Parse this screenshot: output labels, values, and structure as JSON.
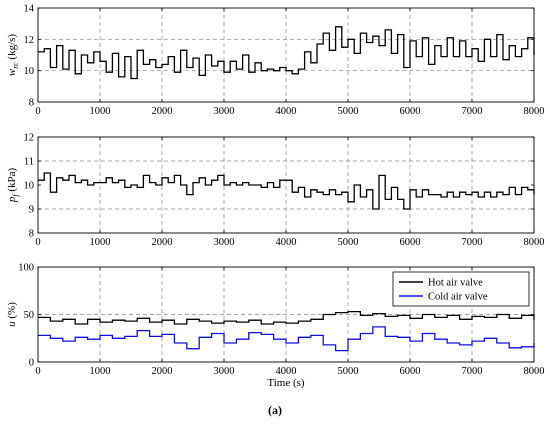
{
  "caption": "(a)",
  "chart_data": [
    {
      "type": "line",
      "ylabel": {
        "base": "w",
        "sub": "rc",
        "unit": " (kg/s)"
      },
      "xlim": [
        0,
        8000
      ],
      "ylim": [
        8,
        14
      ],
      "xticks": [
        "0",
        "1000",
        "2000",
        "3000",
        "4000",
        "5000",
        "6000",
        "7000",
        "8000"
      ],
      "yticks": [
        "8",
        "10",
        "12",
        "14"
      ],
      "grid_y": [
        10,
        12
      ],
      "series": [
        {
          "color": "#000000",
          "x": [
            0,
            100,
            200,
            300,
            400,
            500,
            600,
            700,
            800,
            900,
            1000,
            1100,
            1200,
            1300,
            1400,
            1500,
            1600,
            1700,
            1800,
            1900,
            2000,
            2100,
            2200,
            2300,
            2400,
            2500,
            2600,
            2700,
            2800,
            2900,
            3000,
            3100,
            3200,
            3300,
            3400,
            3500,
            3600,
            3700,
            3800,
            3900,
            4000,
            4100,
            4200,
            4300,
            4400,
            4500,
            4600,
            4700,
            4800,
            4900,
            5000,
            5100,
            5200,
            5300,
            5400,
            5500,
            5600,
            5700,
            5800,
            5900,
            6000,
            6100,
            6200,
            6300,
            6400,
            6500,
            6600,
            6700,
            6800,
            6900,
            7000,
            7100,
            7200,
            7300,
            7400,
            7500,
            7600,
            7700,
            7800,
            7900,
            8000
          ],
          "y": [
            11.2,
            11.4,
            10.2,
            11.6,
            10.1,
            11.3,
            9.8,
            11.0,
            10.5,
            11.2,
            10.6,
            9.9,
            11.1,
            9.6,
            10.9,
            9.5,
            11.3,
            10.4,
            10.7,
            10.2,
            10.4,
            10.9,
            9.9,
            11.3,
            10.2,
            10.8,
            9.7,
            11.0,
            10.3,
            10.6,
            9.9,
            10.6,
            10.1,
            11.0,
            9.9,
            10.5,
            10.0,
            10.1,
            10.0,
            10.2,
            10.0,
            9.8,
            10.1,
            11.2,
            10.5,
            11.7,
            12.4,
            11.3,
            12.8,
            11.5,
            12.0,
            11.1,
            12.4,
            11.8,
            12.2,
            11.6,
            12.6,
            11.1,
            12.3,
            10.2,
            11.9,
            10.9,
            12.1,
            10.4,
            11.6,
            10.9,
            12.1,
            10.9,
            11.9,
            10.9,
            11.4,
            10.6,
            12.0,
            10.9,
            12.3,
            10.7,
            11.6,
            10.9,
            11.4,
            12.1,
            11.0
          ]
        }
      ]
    },
    {
      "type": "line",
      "ylabel": {
        "base": "p",
        "sub": "f",
        "unit": " (kPa)"
      },
      "xlim": [
        0,
        8000
      ],
      "ylim": [
        8,
        12
      ],
      "xticks": [
        "0",
        "1000",
        "2000",
        "3000",
        "4000",
        "5000",
        "6000",
        "7000",
        "8000"
      ],
      "yticks": [
        "8",
        "9",
        "10",
        "11",
        "12"
      ],
      "grid_y": [
        9,
        11
      ],
      "series": [
        {
          "color": "#000000",
          "x": [
            0,
            100,
            200,
            300,
            400,
            500,
            600,
            700,
            800,
            900,
            1000,
            1100,
            1200,
            1300,
            1400,
            1500,
            1600,
            1700,
            1800,
            1900,
            2000,
            2100,
            2200,
            2300,
            2400,
            2500,
            2600,
            2700,
            2800,
            2900,
            3000,
            3100,
            3200,
            3300,
            3400,
            3500,
            3600,
            3700,
            3800,
            3900,
            4000,
            4100,
            4200,
            4300,
            4400,
            4500,
            4600,
            4700,
            4800,
            4900,
            5000,
            5100,
            5200,
            5300,
            5400,
            5500,
            5600,
            5700,
            5800,
            5900,
            6000,
            6100,
            6200,
            6300,
            6400,
            6500,
            6600,
            6700,
            6800,
            6900,
            7000,
            7100,
            7200,
            7300,
            7400,
            7500,
            7600,
            7700,
            7800,
            7900,
            8000
          ],
          "y": [
            10.2,
            10.5,
            9.7,
            10.3,
            10.2,
            10.4,
            10.1,
            10.2,
            10.0,
            10.1,
            10.1,
            10.3,
            10.1,
            10.2,
            9.9,
            10.0,
            9.9,
            10.4,
            10.1,
            10.0,
            10.3,
            10.1,
            10.4,
            10.0,
            9.6,
            10.1,
            10.3,
            10.0,
            10.2,
            10.4,
            10.0,
            10.1,
            10.0,
            10.1,
            10.0,
            10.0,
            9.9,
            10.1,
            9.9,
            10.2,
            10.2,
            9.7,
            9.9,
            9.5,
            9.8,
            9.7,
            9.6,
            9.8,
            9.6,
            9.7,
            9.3,
            10.0,
            9.5,
            9.8,
            9.0,
            10.4,
            9.4,
            9.9,
            9.4,
            9.0,
            9.8,
            9.5,
            9.8,
            9.6,
            9.6,
            9.5,
            9.7,
            9.5,
            9.7,
            9.6,
            9.7,
            9.5,
            9.7,
            9.5,
            9.7,
            9.6,
            9.9,
            9.6,
            9.9,
            9.8,
            9.6
          ]
        }
      ]
    },
    {
      "type": "line",
      "ylabel": {
        "base": "u",
        "sub": "",
        "unit": " (%)"
      },
      "xlabel": "Time (s)",
      "xlim": [
        0,
        8000
      ],
      "ylim": [
        0,
        100
      ],
      "xticks": [
        "0",
        "1000",
        "2000",
        "3000",
        "4000",
        "5000",
        "6000",
        "7000",
        "8000"
      ],
      "yticks": [
        "0",
        "50",
        "100"
      ],
      "grid_y": [
        50
      ],
      "legend": {
        "position": "top-right"
      },
      "series": [
        {
          "name": "Hot air valve",
          "color": "#000000",
          "x": [
            0,
            200,
            400,
            600,
            800,
            1000,
            1200,
            1400,
            1600,
            1800,
            2000,
            2200,
            2400,
            2600,
            2800,
            3000,
            3200,
            3400,
            3600,
            3800,
            4000,
            4200,
            4400,
            4600,
            4800,
            5000,
            5200,
            5400,
            5600,
            5800,
            6000,
            6200,
            6400,
            6600,
            6800,
            7000,
            7200,
            7400,
            7600,
            7800,
            8000
          ],
          "y": [
            47,
            43,
            45,
            40,
            45,
            42,
            44,
            43,
            46,
            42,
            44,
            40,
            45,
            43,
            41,
            43,
            42,
            44,
            40,
            42,
            41,
            43,
            45,
            50,
            52,
            53,
            49,
            51,
            48,
            49,
            46,
            50,
            47,
            49,
            45,
            48,
            47,
            50,
            46,
            49,
            44
          ]
        },
        {
          "name": "Cold air valve",
          "color": "#1010e0",
          "x": [
            0,
            200,
            400,
            600,
            800,
            1000,
            1200,
            1400,
            1600,
            1800,
            2000,
            2200,
            2400,
            2600,
            2800,
            3000,
            3200,
            3400,
            3600,
            3800,
            4000,
            4200,
            4400,
            4600,
            4800,
            5000,
            5200,
            5400,
            5600,
            5800,
            6000,
            6200,
            6400,
            6600,
            6800,
            7000,
            7200,
            7400,
            7600,
            7800,
            8000
          ],
          "y": [
            28,
            25,
            22,
            26,
            24,
            28,
            25,
            27,
            33,
            27,
            29,
            20,
            14,
            26,
            30,
            20,
            24,
            31,
            29,
            24,
            20,
            26,
            28,
            18,
            12,
            24,
            30,
            37,
            27,
            26,
            22,
            30,
            24,
            20,
            18,
            22,
            25,
            20,
            15,
            16,
            20
          ]
        }
      ]
    }
  ]
}
